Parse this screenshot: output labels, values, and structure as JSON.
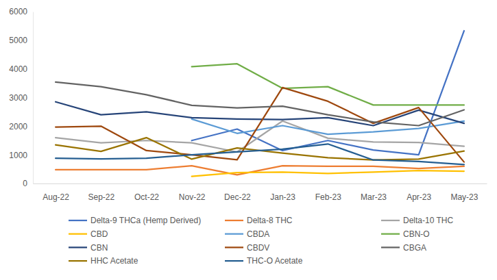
{
  "chart_data": {
    "type": "line",
    "categories": [
      "Aug-22",
      "Sep-22",
      "Oct-22",
      "Nov-22",
      "Dec-22",
      "Jan-23",
      "Feb-23",
      "Mar-23",
      "Apr-23",
      "May-23"
    ],
    "ylim": [
      0,
      6000
    ],
    "yticks": [
      0,
      1000,
      2000,
      3000,
      4000,
      5000,
      6000
    ],
    "grid": false,
    "legend": "bottom",
    "series": [
      {
        "name": "Delta-9 THCa (Hemp Derived)",
        "color": "#4472c4",
        "values": [
          null,
          null,
          null,
          1500,
          1900,
          1150,
          1500,
          1170,
          1000,
          5330
        ]
      },
      {
        "name": "Delta-8 THC",
        "color": "#ed7d31",
        "values": [
          480,
          480,
          480,
          620,
          300,
          620,
          600,
          600,
          520,
          600
        ]
      },
      {
        "name": "Delta-10 THC",
        "color": "#a5a5a5",
        "values": [
          1600,
          1420,
          1500,
          1420,
          1100,
          2180,
          1580,
          1450,
          1430,
          1300
        ]
      },
      {
        "name": "CBD",
        "color": "#ffc000",
        "values": [
          null,
          null,
          null,
          250,
          380,
          400,
          350,
          400,
          450,
          430
        ]
      },
      {
        "name": "CBDA",
        "color": "#5b9bd5",
        "values": [
          null,
          null,
          null,
          2250,
          1750,
          2020,
          1720,
          1800,
          1920,
          2180
        ]
      },
      {
        "name": "CBN-O",
        "color": "#70ad47",
        "values": [
          null,
          null,
          null,
          4080,
          4180,
          3320,
          3380,
          2740,
          2740,
          2740
        ]
      },
      {
        "name": "CBN",
        "color": "#264478",
        "values": [
          2850,
          2400,
          2500,
          2300,
          2250,
          2230,
          2300,
          2020,
          2560,
          2100
        ]
      },
      {
        "name": "CBDV",
        "color": "#9e480e",
        "values": [
          1970,
          2000,
          1150,
          1000,
          830,
          3350,
          2870,
          2100,
          2650,
          750
        ]
      },
      {
        "name": "CBGA",
        "color": "#636363",
        "values": [
          3540,
          3380,
          3100,
          2730,
          2640,
          2700,
          2400,
          2150,
          2020,
          2570
        ]
      },
      {
        "name": "HHC Acetate",
        "color": "#997300",
        "values": [
          1350,
          1120,
          1600,
          850,
          1240,
          1060,
          900,
          820,
          850,
          1130
        ]
      },
      {
        "name": "THC-O Acetate",
        "color": "#255e91",
        "values": [
          880,
          860,
          880,
          1000,
          1100,
          1200,
          1380,
          820,
          770,
          660
        ]
      }
    ]
  }
}
